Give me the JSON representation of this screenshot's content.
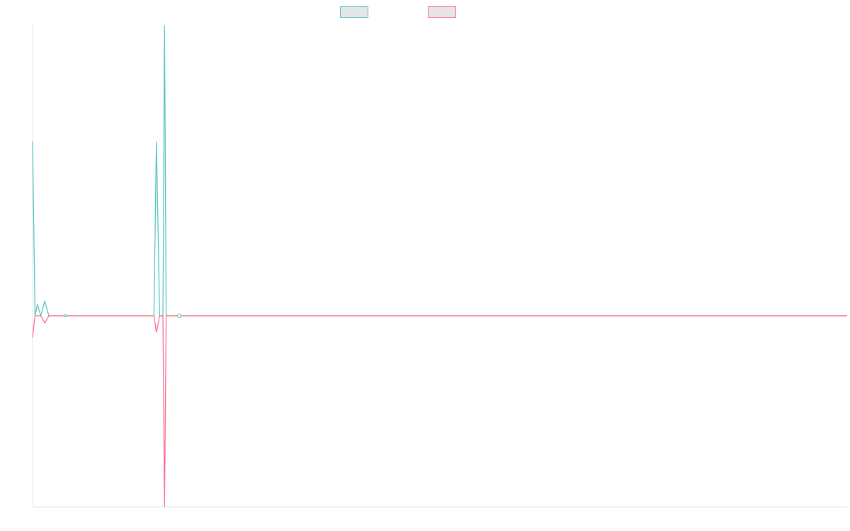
{
  "colors": {
    "series_a": "#4bc0c0",
    "series_b": "#ff6384",
    "axis": "#e6e6e6",
    "legend_fill": "#e6e6e6"
  },
  "legend": [
    {
      "label": "",
      "color": "#4bc0c0"
    },
    {
      "label": "",
      "color": "#ff6384"
    }
  ],
  "chart_data": {
    "type": "line",
    "title": "",
    "xlabel": "",
    "ylabel": "",
    "grid": false,
    "legend_position": "top-center",
    "x_range": [
      0,
      100
    ],
    "ylim": [
      -1,
      1
    ],
    "x": [
      0,
      0.3,
      0.6,
      1,
      1.5,
      2,
      4,
      14.9,
      15.2,
      15.6,
      16,
      16.2,
      16.4,
      16.6,
      18,
      100
    ],
    "series": [
      {
        "values": [
          0.6,
          0.0,
          0.04,
          0.0,
          0.05,
          0.0,
          0.0,
          0.0,
          0.6,
          0.0,
          0.0,
          1.0,
          0.0,
          0.0,
          0.0,
          0.0
        ]
      },
      {
        "values": [
          -0.09,
          0.0,
          0.0,
          0.0,
          -0.03,
          0.0,
          0.0,
          0.0,
          -0.07,
          0.0,
          0.0,
          -0.8,
          0.0,
          0.0,
          0.0,
          0.0
        ]
      }
    ],
    "markers": [
      {
        "series": 0,
        "x": 4,
        "y": 0
      },
      {
        "series": 0,
        "x": 18,
        "y": 0
      }
    ]
  }
}
